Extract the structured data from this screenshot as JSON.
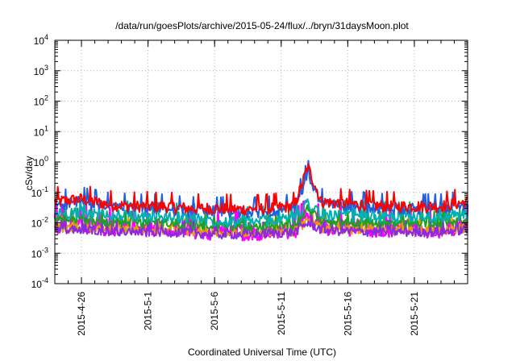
{
  "chart_data": {
    "type": "line",
    "title": "/data/run/goesPlots/archive/2015-05-24/flux/../bryn/31daysMoon.plot",
    "xlabel": "Coordinated Universal Time (UTC)",
    "ylabel": "cSv/day",
    "yscale": "log",
    "ylim": [
      0.0001,
      10000
    ],
    "xlim": [
      "2015-04-24",
      "2015-05-25"
    ],
    "grid": true,
    "legend": "none",
    "y_ticks": [
      {
        "base": "10",
        "exp": "-4"
      },
      {
        "base": "10",
        "exp": "-3"
      },
      {
        "base": "10",
        "exp": "-2"
      },
      {
        "base": "10",
        "exp": "-1"
      },
      {
        "base": "10",
        "exp": "0"
      },
      {
        "base": "10",
        "exp": "1"
      },
      {
        "base": "10",
        "exp": "2"
      },
      {
        "base": "10",
        "exp": "3"
      },
      {
        "base": "10",
        "exp": "4"
      }
    ],
    "x_ticks": [
      "2015-4-26",
      "2015-5-1",
      "2015-5-6",
      "2015-5-11",
      "2015-5-16",
      "2015-5-21"
    ],
    "series": [
      {
        "color": "#ff0000",
        "x": [
          "2015-04-24",
          "2015-04-26",
          "2015-04-28",
          "2015-04-30",
          "2015-05-02",
          "2015-05-04",
          "2015-05-06",
          "2015-05-08",
          "2015-05-10",
          "2015-05-12",
          "2015-05-13",
          "2015-05-14",
          "2015-05-15",
          "2015-05-17",
          "2015-05-19",
          "2015-05-21",
          "2015-05-23",
          "2015-05-25"
        ],
        "values": [
          0.05,
          0.06,
          0.04,
          0.035,
          0.035,
          0.03,
          0.03,
          0.028,
          0.03,
          0.035,
          0.7,
          0.05,
          0.045,
          0.04,
          0.035,
          0.035,
          0.035,
          0.05
        ]
      },
      {
        "color": "#1f5fe0",
        "x": [
          "2015-04-24",
          "2015-04-26",
          "2015-04-28",
          "2015-04-30",
          "2015-05-02",
          "2015-05-04",
          "2015-05-06",
          "2015-05-08",
          "2015-05-10",
          "2015-05-12",
          "2015-05-13",
          "2015-05-14",
          "2015-05-15",
          "2015-05-17",
          "2015-05-19",
          "2015-05-21",
          "2015-05-23",
          "2015-05-25"
        ],
        "values": [
          0.04,
          0.05,
          0.035,
          0.03,
          0.03,
          0.025,
          0.025,
          0.022,
          0.025,
          0.03,
          0.4,
          0.045,
          0.04,
          0.035,
          0.03,
          0.03,
          0.03,
          0.04
        ]
      },
      {
        "color": "#00b0b0",
        "x": [
          "2015-04-24",
          "2015-04-26",
          "2015-04-28",
          "2015-04-30",
          "2015-05-02",
          "2015-05-04",
          "2015-05-06",
          "2015-05-08",
          "2015-05-10",
          "2015-05-12",
          "2015-05-13",
          "2015-05-14",
          "2015-05-15",
          "2015-05-17",
          "2015-05-19",
          "2015-05-21",
          "2015-05-23",
          "2015-05-25"
        ],
        "values": [
          0.02,
          0.022,
          0.018,
          0.017,
          0.016,
          0.015,
          0.012,
          0.011,
          0.012,
          0.015,
          0.05,
          0.018,
          0.018,
          0.017,
          0.016,
          0.016,
          0.016,
          0.02
        ]
      },
      {
        "color": "#20a020",
        "x": [
          "2015-04-24",
          "2015-04-26",
          "2015-04-28",
          "2015-04-30",
          "2015-05-02",
          "2015-05-04",
          "2015-05-06",
          "2015-05-08",
          "2015-05-10",
          "2015-05-12",
          "2015-05-13",
          "2015-05-14",
          "2015-05-15",
          "2015-05-17",
          "2015-05-19",
          "2015-05-21",
          "2015-05-23",
          "2015-05-25"
        ],
        "values": [
          0.012,
          0.013,
          0.011,
          0.01,
          0.01,
          0.009,
          0.008,
          0.008,
          0.008,
          0.009,
          0.03,
          0.012,
          0.011,
          0.01,
          0.01,
          0.01,
          0.01,
          0.012
        ]
      },
      {
        "color": "#e0a000",
        "x": [
          "2015-04-24",
          "2015-04-26",
          "2015-04-28",
          "2015-04-30",
          "2015-05-02",
          "2015-05-04",
          "2015-05-06",
          "2015-05-08",
          "2015-05-10",
          "2015-05-12",
          "2015-05-13",
          "2015-05-14",
          "2015-05-15",
          "2015-05-17",
          "2015-05-19",
          "2015-05-21",
          "2015-05-23",
          "2015-05-25"
        ],
        "values": [
          0.007,
          0.007,
          0.0065,
          0.006,
          0.006,
          0.0055,
          0.005,
          0.005,
          0.005,
          0.0055,
          0.012,
          0.007,
          0.0065,
          0.006,
          0.006,
          0.006,
          0.006,
          0.007
        ]
      },
      {
        "color": "#8a2be2",
        "x": [
          "2015-04-24",
          "2015-04-26",
          "2015-04-28",
          "2015-04-30",
          "2015-05-02",
          "2015-05-04",
          "2015-05-06",
          "2015-05-08",
          "2015-05-10",
          "2015-05-12",
          "2015-05-13",
          "2015-05-14",
          "2015-05-15",
          "2015-05-17",
          "2015-05-19",
          "2015-05-21",
          "2015-05-23",
          "2015-05-25"
        ],
        "values": [
          0.006,
          0.006,
          0.0055,
          0.005,
          0.005,
          0.0048,
          0.0042,
          0.0042,
          0.0045,
          0.005,
          0.01,
          0.006,
          0.0055,
          0.0052,
          0.005,
          0.005,
          0.005,
          0.006
        ]
      },
      {
        "color": "#ff00ff",
        "x": [
          "2015-04-24",
          "2015-04-26",
          "2015-04-28",
          "2015-04-30",
          "2015-05-02",
          "2015-05-04",
          "2015-05-06",
          "2015-05-08",
          "2015-05-10",
          "2015-05-12",
          "2015-05-13",
          "2015-05-14",
          "2015-05-15",
          "2015-05-17",
          "2015-05-19",
          "2015-05-21",
          "2015-05-23",
          "2015-05-25"
        ],
        "values": [
          0.008,
          0.009,
          0.007,
          0.007,
          0.006,
          0.006,
          0.005,
          0.005,
          0.005,
          0.006,
          0.015,
          0.008,
          0.007,
          0.007,
          0.006,
          0.006,
          0.006,
          0.009
        ]
      }
    ]
  }
}
